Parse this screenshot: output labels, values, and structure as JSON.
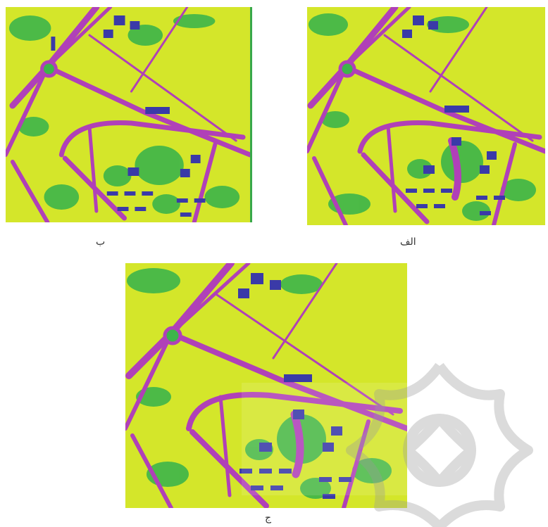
{
  "captions": {
    "panel_b": "ب",
    "panel_a": "الف",
    "panel_c": "ج"
  },
  "classification_colors": {
    "vegetation_dry": "#d4e62a",
    "vegetation": "#3db54a",
    "roads": "#b040b8",
    "buildings": "#3a3aa8"
  },
  "watermark_icon": "rosette-ornament-icon"
}
